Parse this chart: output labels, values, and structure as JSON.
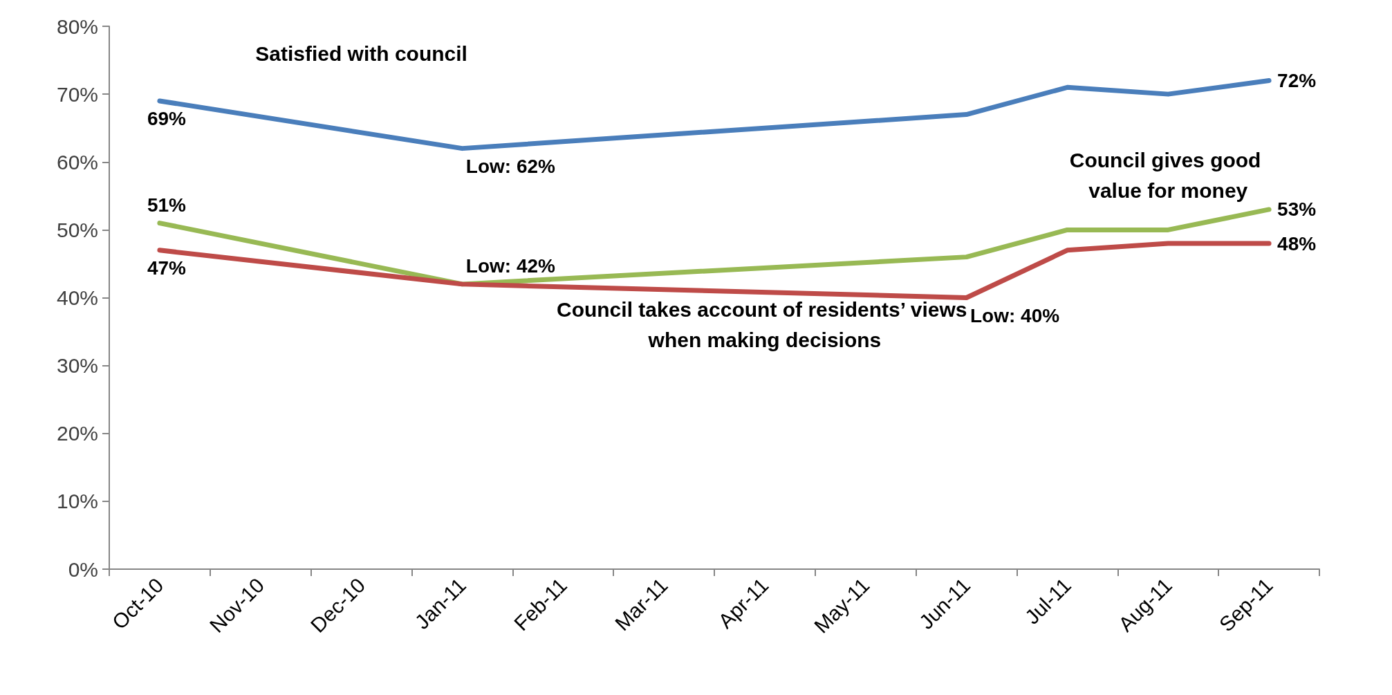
{
  "chart_data": {
    "type": "line",
    "categories": [
      "Oct-10",
      "Nov-10",
      "Dec-10",
      "Jan-11",
      "Feb-11",
      "Mar-11",
      "Apr-11",
      "May-11",
      "Jun-11",
      "Jul-11",
      "Aug-11",
      "Sep-11"
    ],
    "ylim": [
      0,
      80
    ],
    "yticks": [
      {
        "value": 0,
        "label": "0%"
      },
      {
        "value": 10,
        "label": "10%"
      },
      {
        "value": 20,
        "label": "20%"
      },
      {
        "value": 30,
        "label": "30%"
      },
      {
        "value": 40,
        "label": "40%"
      },
      {
        "value": 50,
        "label": "50%"
      },
      {
        "value": 60,
        "label": "60%"
      },
      {
        "value": 70,
        "label": "70%"
      },
      {
        "value": 80,
        "label": "80%"
      }
    ],
    "grid": false,
    "legend": false,
    "marker": "none",
    "line_style": "solid",
    "series": [
      {
        "name": "Satisfied with council",
        "color": "#4a7ebb",
        "values": [
          69,
          null,
          null,
          62,
          null,
          null,
          null,
          null,
          67,
          71,
          70,
          72
        ],
        "value_labels": [
          "69%",
          null,
          null,
          "Low: 62%",
          null,
          null,
          null,
          null,
          null,
          null,
          null,
          "72%"
        ]
      },
      {
        "name": "Council gives good value for money",
        "color": "#98b954",
        "values": [
          51,
          null,
          null,
          42,
          null,
          null,
          null,
          null,
          46,
          50,
          50,
          53
        ],
        "value_labels": [
          "51%",
          null,
          null,
          "Low: 42%",
          null,
          null,
          null,
          null,
          null,
          null,
          null,
          "53%"
        ]
      },
      {
        "name": "Council takes account of residents’ views when making decisions",
        "color": "#be4b48",
        "values": [
          47,
          null,
          null,
          42,
          null,
          null,
          null,
          null,
          40,
          47,
          48,
          48
        ],
        "value_labels": [
          "47%",
          null,
          null,
          null,
          null,
          null,
          null,
          null,
          "Low: 40%",
          null,
          null,
          "48%"
        ]
      }
    ]
  }
}
